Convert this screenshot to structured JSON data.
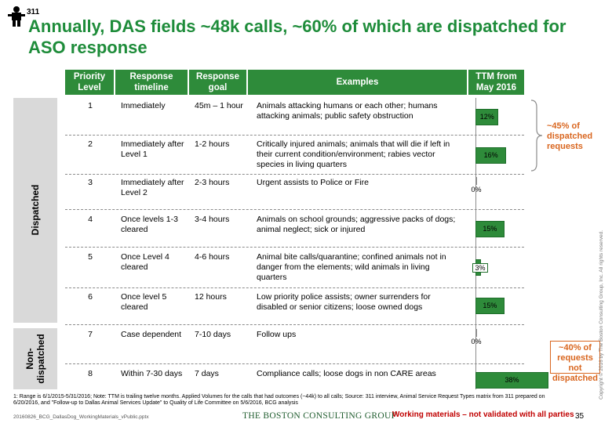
{
  "header": {
    "logo_text": "311",
    "title": "Annually, DAS fields ~48k calls, ~60% of which are dispatched for ASO response"
  },
  "table": {
    "columns": {
      "priority": "Priority Level",
      "timeline": "Response timeline",
      "goal": "Response goal",
      "examples": "Examples",
      "ttm": "TTM from May 2016"
    },
    "groups": {
      "dispatched": "Dispatched",
      "non_dispatched": "Non-dispatched"
    },
    "rows": [
      {
        "level": "1",
        "timeline": "Immediately",
        "goal": "45m – 1 hour",
        "examples": "Animals attacking humans or each other; humans attacking animals; public safety obstruction",
        "pct": "12%"
      },
      {
        "level": "2",
        "timeline": "Immediately after Level 1",
        "goal": "1-2 hours",
        "examples": "Critically injured animals; animals that will die if left in their current condition/environment; rabies vector species in living quarters",
        "pct": "16%"
      },
      {
        "level": "3",
        "timeline": "Immediately after Level 2",
        "goal": "2-3 hours",
        "examples": "Urgent assists to Police or Fire",
        "pct": "0%"
      },
      {
        "level": "4",
        "timeline": "Once levels 1-3 cleared",
        "goal": "3-4 hours",
        "examples": "Animals on school grounds; aggressive packs of dogs; animal neglect; sick or injured",
        "pct": "15%"
      },
      {
        "level": "5",
        "timeline": "Once Level 4 cleared",
        "goal": "4-6 hours",
        "examples": "Animal bite calls/quarantine; confined animals not in danger from the elements; wild animals in living quarters",
        "pct": "3%"
      },
      {
        "level": "6",
        "timeline": "Once level 5 cleared",
        "goal": "12 hours",
        "examples": "Low priority police assists; owner surrenders for disabled or senior citizens; loose owned dogs",
        "pct": "15%"
      },
      {
        "level": "7",
        "timeline": "Case dependent",
        "goal": "7-10 days",
        "examples": "Follow ups",
        "pct": "0%"
      },
      {
        "level": "8",
        "timeline": "Within 7-30 days",
        "goal": "7 days",
        "examples": "Compliance calls; loose dogs in non CARE areas",
        "pct": "38%"
      }
    ]
  },
  "chart_data": {
    "type": "bar",
    "orientation": "horizontal",
    "categories": [
      "1",
      "2",
      "3",
      "4",
      "5",
      "6",
      "7",
      "8"
    ],
    "values": [
      12,
      16,
      0,
      15,
      3,
      15,
      0,
      38
    ],
    "title": "TTM from May 2016",
    "value_suffix": "%",
    "grid": false
  },
  "callouts": {
    "dispatched_share": "~45% of dispatched requests",
    "non_dispatched_share": "~40% of requests not dispatched"
  },
  "footer": {
    "footnote": "1: Range is 6/1/2015-5/31/2016; Note: TTM is trailing twelve months. Applied Volumes for the calls that had outcomes (~44k) to all calls; Source: 311 interview, Animal Service Request Types matrix from 311 prepared on 6/20/2016, and \"Follow-up to Dallas Animal Services Update\" to Quality of Life Committee on 5/6/2016, BCG analysis",
    "filename": "20160826_BCG_DallasDog_WorkingMaterials_vPublic.pptx",
    "company": "THE BOSTON CONSULTING GROUP",
    "working_note": "Working materials – not validated with all parties",
    "page_number": "35",
    "copyright": "Copyright © 2016 by The Boston Consulting Group, Inc. All rights reserved."
  },
  "colors": {
    "title_green": "#1e8c3a",
    "header_green": "#2e8b3a",
    "accent_orange": "#d9661f",
    "warning_red": "#c00000"
  }
}
